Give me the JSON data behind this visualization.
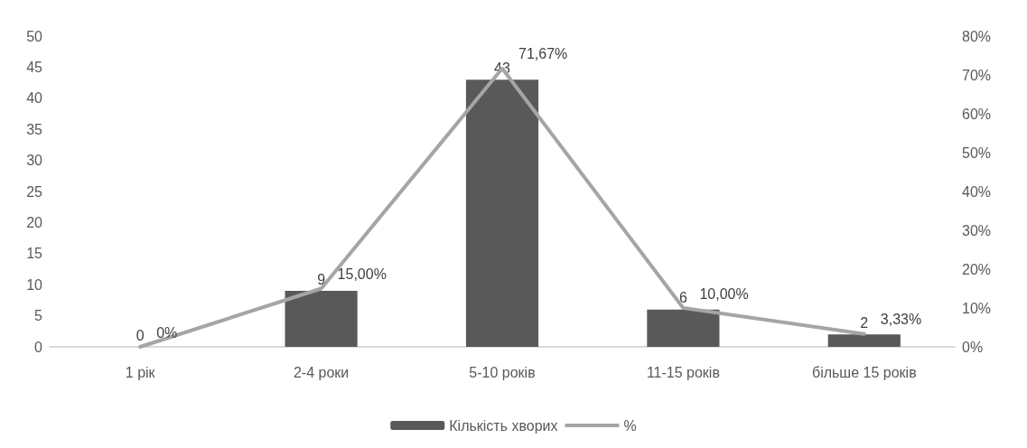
{
  "chart_data": {
    "type": "bar",
    "categories": [
      "1 рік",
      "2-4 роки",
      "5-10 років",
      "11-15 років",
      "більше 15 років"
    ],
    "series": [
      {
        "name": "Кількість хворих",
        "color": "#595959",
        "values": [
          0,
          9,
          43,
          6,
          2
        ]
      },
      {
        "name": "%",
        "type": "line",
        "axis": "y2",
        "color": "#a5a5a5",
        "values": [
          0,
          15,
          71.67,
          10,
          3.33
        ],
        "value_labels": [
          "0%",
          "15,00%",
          "71,67%",
          "10,00%",
          "3,33%"
        ]
      }
    ],
    "ylim": [
      0,
      50
    ],
    "yticks": [
      0,
      5,
      10,
      15,
      20,
      25,
      30,
      35,
      40,
      45,
      50
    ],
    "y2lim": [
      0,
      80
    ],
    "y2ticks": [
      {
        "value": 0,
        "label": "0%"
      },
      {
        "value": 10,
        "label": "10%"
      },
      {
        "value": 20,
        "label": "20%"
      },
      {
        "value": 30,
        "label": "30%"
      },
      {
        "value": 40,
        "label": "40%"
      },
      {
        "value": 50,
        "label": "50%"
      },
      {
        "value": 60,
        "label": "60%"
      },
      {
        "value": 70,
        "label": "70%"
      },
      {
        "value": 80,
        "label": "80%"
      }
    ],
    "data_labels": true,
    "legend": "bottom",
    "grid": false,
    "marker": "none",
    "line_style": "solid"
  }
}
